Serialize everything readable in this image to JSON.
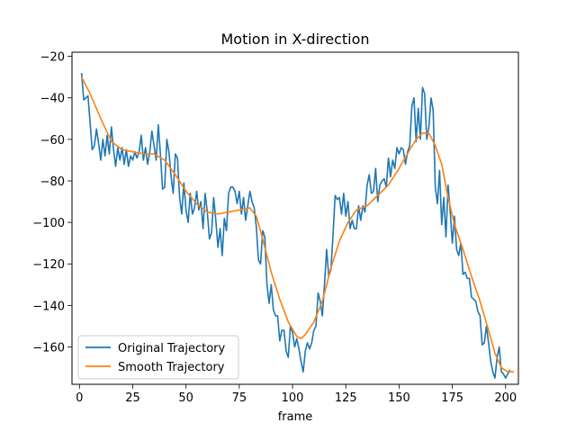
{
  "chart_data": {
    "type": "line",
    "title": "Motion in X-direction",
    "xlabel": "frame",
    "ylabel": "",
    "xlim": [
      -3.5,
      206
    ],
    "ylim": [
      -178,
      -18
    ],
    "xticks": [
      0,
      25,
      50,
      75,
      100,
      125,
      150,
      175,
      200
    ],
    "yticks": [
      -20,
      -40,
      -60,
      -80,
      -100,
      -120,
      -140,
      -160
    ],
    "grid": false,
    "legend_position": "lower-left",
    "series": [
      {
        "name": "Original Trajectory",
        "color": "#1f77b4",
        "points": [
          [
            1,
            -28
          ],
          [
            2,
            -41
          ],
          [
            3,
            -40
          ],
          [
            4,
            -39
          ],
          [
            5,
            -52
          ],
          [
            6,
            -65
          ],
          [
            7,
            -63
          ],
          [
            8,
            -55
          ],
          [
            9,
            -62
          ],
          [
            10,
            -70
          ],
          [
            11,
            -60
          ],
          [
            12,
            -68
          ],
          [
            13,
            -58
          ],
          [
            14,
            -67
          ],
          [
            15,
            -54
          ],
          [
            16,
            -65
          ],
          [
            17,
            -73
          ],
          [
            18,
            -64
          ],
          [
            19,
            -70
          ],
          [
            20,
            -64
          ],
          [
            21,
            -72
          ],
          [
            22,
            -65
          ],
          [
            23,
            -73
          ],
          [
            24,
            -68
          ],
          [
            25,
            -70
          ],
          [
            26,
            -66
          ],
          [
            27,
            -69
          ],
          [
            28,
            -66
          ],
          [
            29,
            -58
          ],
          [
            30,
            -70
          ],
          [
            31,
            -64
          ],
          [
            32,
            -72
          ],
          [
            33,
            -66
          ],
          [
            34,
            -56
          ],
          [
            35,
            -63
          ],
          [
            36,
            -70
          ],
          [
            37,
            -53
          ],
          [
            38,
            -67
          ],
          [
            39,
            -84
          ],
          [
            40,
            -83
          ],
          [
            41,
            -60
          ],
          [
            42,
            -66
          ],
          [
            43,
            -78
          ],
          [
            44,
            -86
          ],
          [
            45,
            -67
          ],
          [
            46,
            -69
          ],
          [
            47,
            -88
          ],
          [
            48,
            -96
          ],
          [
            49,
            -81
          ],
          [
            50,
            -94
          ],
          [
            51,
            -100
          ],
          [
            52,
            -86
          ],
          [
            53,
            -96
          ],
          [
            54,
            -93
          ],
          [
            55,
            -85
          ],
          [
            56,
            -94
          ],
          [
            57,
            -90
          ],
          [
            58,
            -103
          ],
          [
            59,
            -86
          ],
          [
            60,
            -95
          ],
          [
            61,
            -108
          ],
          [
            62,
            -105
          ],
          [
            63,
            -88
          ],
          [
            64,
            -99
          ],
          [
            65,
            -112
          ],
          [
            66,
            -103
          ],
          [
            67,
            -116
          ],
          [
            68,
            -98
          ],
          [
            69,
            -104
          ],
          [
            70,
            -86
          ],
          [
            71,
            -83
          ],
          [
            72,
            -83
          ],
          [
            73,
            -85
          ],
          [
            74,
            -91
          ],
          [
            75,
            -85
          ],
          [
            76,
            -96
          ],
          [
            77,
            -88
          ],
          [
            78,
            -99
          ],
          [
            79,
            -92
          ],
          [
            80,
            -85
          ],
          [
            81,
            -90
          ],
          [
            82,
            -93
          ],
          [
            83,
            -102
          ],
          [
            84,
            -118
          ],
          [
            85,
            -120
          ],
          [
            86,
            -104
          ],
          [
            87,
            -107
          ],
          [
            88,
            -130
          ],
          [
            89,
            -139
          ],
          [
            90,
            -130
          ],
          [
            91,
            -142
          ],
          [
            92,
            -145
          ],
          [
            93,
            -145
          ],
          [
            94,
            -157
          ],
          [
            95,
            -152
          ],
          [
            96,
            -152
          ],
          [
            97,
            -162
          ],
          [
            98,
            -165
          ],
          [
            99,
            -150
          ],
          [
            100,
            -153
          ],
          [
            101,
            -160
          ],
          [
            102,
            -156
          ],
          [
            103,
            -161
          ],
          [
            104,
            -167
          ],
          [
            105,
            -172
          ],
          [
            106,
            -162
          ],
          [
            107,
            -158
          ],
          [
            108,
            -161
          ],
          [
            109,
            -158
          ],
          [
            110,
            -152
          ],
          [
            111,
            -150
          ],
          [
            112,
            -134
          ],
          [
            113,
            -138
          ],
          [
            114,
            -145
          ],
          [
            115,
            -130
          ],
          [
            116,
            -113
          ],
          [
            117,
            -126
          ],
          [
            118,
            -123
          ],
          [
            119,
            -106
          ],
          [
            120,
            -87
          ],
          [
            121,
            -89
          ],
          [
            122,
            -88
          ],
          [
            123,
            -96
          ],
          [
            124,
            -86
          ],
          [
            125,
            -97
          ],
          [
            126,
            -90
          ],
          [
            127,
            -103
          ],
          [
            128,
            -99
          ],
          [
            129,
            -103
          ],
          [
            130,
            -103
          ],
          [
            131,
            -92
          ],
          [
            132,
            -99
          ],
          [
            133,
            -92
          ],
          [
            134,
            -95
          ],
          [
            135,
            -82
          ],
          [
            136,
            -77
          ],
          [
            137,
            -86
          ],
          [
            138,
            -85
          ],
          [
            139,
            -74
          ],
          [
            140,
            -90
          ],
          [
            141,
            -82
          ],
          [
            142,
            -80
          ],
          [
            143,
            -79
          ],
          [
            144,
            -83
          ],
          [
            145,
            -69
          ],
          [
            146,
            -78
          ],
          [
            147,
            -70
          ],
          [
            148,
            -74
          ],
          [
            149,
            -64
          ],
          [
            150,
            -67
          ],
          [
            151,
            -64
          ],
          [
            152,
            -65
          ],
          [
            153,
            -72
          ],
          [
            154,
            -66
          ],
          [
            155,
            -63
          ],
          [
            156,
            -44
          ],
          [
            157,
            -40
          ],
          [
            158,
            -61
          ],
          [
            159,
            -45
          ],
          [
            160,
            -60
          ],
          [
            161,
            -35
          ],
          [
            162,
            -38
          ],
          [
            163,
            -60
          ],
          [
            164,
            -54
          ],
          [
            165,
            -40
          ],
          [
            166,
            -46
          ],
          [
            167,
            -83
          ],
          [
            168,
            -91
          ],
          [
            169,
            -75
          ],
          [
            170,
            -101
          ],
          [
            171,
            -88
          ],
          [
            172,
            -107
          ],
          [
            173,
            -82
          ],
          [
            174,
            -95
          ],
          [
            175,
            -110
          ],
          [
            176,
            -97
          ],
          [
            177,
            -113
          ],
          [
            178,
            -116
          ],
          [
            179,
            -110
          ],
          [
            180,
            -125
          ],
          [
            181,
            -124
          ],
          [
            182,
            -127
          ],
          [
            183,
            -127
          ],
          [
            184,
            -136
          ],
          [
            185,
            -137
          ],
          [
            186,
            -138
          ],
          [
            187,
            -143
          ],
          [
            188,
            -145
          ],
          [
            189,
            -159
          ],
          [
            190,
            -158
          ],
          [
            191,
            -150
          ],
          [
            192,
            -158
          ],
          [
            193,
            -167
          ],
          [
            194,
            -172
          ],
          [
            195,
            -175
          ],
          [
            196,
            -165
          ],
          [
            197,
            -160
          ],
          [
            198,
            -172
          ],
          [
            199,
            -173
          ],
          [
            200,
            -175
          ],
          [
            201,
            -173
          ],
          [
            202,
            -171
          ]
        ]
      },
      {
        "name": "Smooth Trajectory",
        "color": "#ff7f0e",
        "points": [
          [
            1,
            -30
          ],
          [
            5,
            -38
          ],
          [
            10,
            -50
          ],
          [
            15,
            -61
          ],
          [
            20,
            -65
          ],
          [
            25,
            -66
          ],
          [
            30,
            -67
          ],
          [
            35,
            -67
          ],
          [
            40,
            -70
          ],
          [
            45,
            -77
          ],
          [
            50,
            -85
          ],
          [
            55,
            -91
          ],
          [
            60,
            -95
          ],
          [
            65,
            -96
          ],
          [
            70,
            -95
          ],
          [
            75,
            -94
          ],
          [
            80,
            -93
          ],
          [
            83,
            -97
          ],
          [
            86,
            -108
          ],
          [
            90,
            -124
          ],
          [
            94,
            -137
          ],
          [
            98,
            -148
          ],
          [
            102,
            -155
          ],
          [
            104,
            -156
          ],
          [
            106,
            -154
          ],
          [
            110,
            -148
          ],
          [
            114,
            -138
          ],
          [
            118,
            -122
          ],
          [
            122,
            -109
          ],
          [
            126,
            -100
          ],
          [
            130,
            -94
          ],
          [
            135,
            -92
          ],
          [
            140,
            -87
          ],
          [
            145,
            -82
          ],
          [
            150,
            -74
          ],
          [
            155,
            -65
          ],
          [
            158,
            -60
          ],
          [
            161,
            -57
          ],
          [
            164,
            -57
          ],
          [
            167,
            -63
          ],
          [
            170,
            -72
          ],
          [
            173,
            -88
          ],
          [
            176,
            -101
          ],
          [
            180,
            -113
          ],
          [
            184,
            -126
          ],
          [
            188,
            -138
          ],
          [
            192,
            -152
          ],
          [
            195,
            -163
          ],
          [
            198,
            -170
          ],
          [
            201,
            -172
          ],
          [
            204,
            -172
          ]
        ]
      }
    ]
  }
}
